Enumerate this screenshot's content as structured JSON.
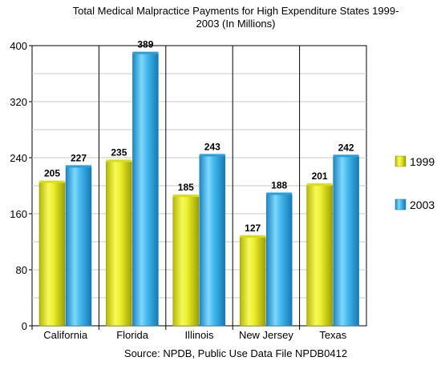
{
  "chart_data": {
    "type": "bar",
    "title_line1": "Total Medical Malpractice Payments for High Expenditure States 1999-",
    "title_line2": "2003 (In Millions)",
    "categories": [
      "California",
      "Florida",
      "Illinois",
      "New Jersey",
      "Texas"
    ],
    "series": [
      {
        "name": "1999",
        "values": [
          205,
          235,
          185,
          127,
          201
        ],
        "color": "#e6ea2a"
      },
      {
        "name": "2003",
        "values": [
          227,
          389,
          243,
          188,
          242
        ],
        "color": "#3fb3e8"
      }
    ],
    "ylim": [
      0,
      400
    ],
    "yticks": [
      0,
      80,
      160,
      240,
      320,
      400
    ],
    "grid": true,
    "legend_position": "right",
    "source": "Source: NPDB, Public Use Data File NPDB0412"
  }
}
